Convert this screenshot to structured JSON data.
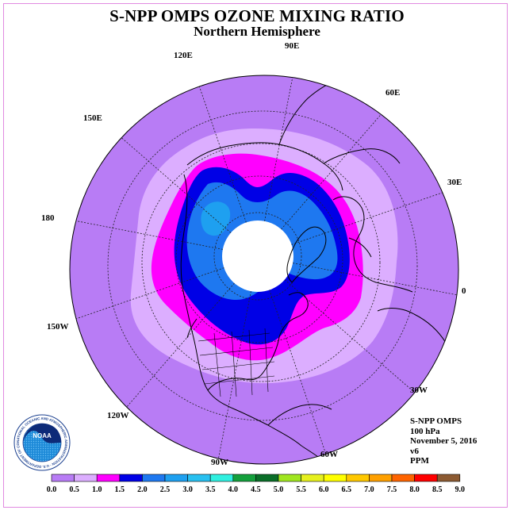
{
  "title": "S-NPP OMPS OZONE MIXING RATIO",
  "subtitle": "Northern Hemisphere",
  "longitude_labels": [
    "90E",
    "60E",
    "30E",
    "0",
    "30W",
    "60W",
    "90W",
    "120W",
    "150W",
    "180",
    "150E",
    "120E"
  ],
  "info": {
    "instrument": "S-NPP OMPS",
    "level": "100 hPa",
    "date": "November 5, 2016",
    "version": "v6",
    "units": "PPM"
  },
  "logo": {
    "center_text": "NOAA",
    "ring_text": "NATIONAL OCEANIC AND ATMOSPHERIC ADMINISTRATION · U.S. DEPARTMENT OF COMMERCE"
  },
  "colorbar": {
    "ticks": [
      "0.0",
      "0.5",
      "1.0",
      "1.5",
      "2.0",
      "2.5",
      "3.0",
      "3.5",
      "4.0",
      "4.5",
      "5.0",
      "5.5",
      "6.0",
      "6.5",
      "7.0",
      "7.5",
      "8.0",
      "8.5",
      "9.0"
    ],
    "colors": [
      "#b87cf5",
      "#dcaeff",
      "#ff00ff",
      "#0000e6",
      "#1e78f0",
      "#1ea0f0",
      "#28c0f0",
      "#30f0e0",
      "#14a03c",
      "#0a6e28",
      "#a0e620",
      "#e6f01e",
      "#ffff00",
      "#ffc800",
      "#ffa000",
      "#ff6400",
      "#ff0000",
      "#8c5a32"
    ]
  },
  "field_colors": {
    "level_0_0": "#b87cf5",
    "level_0_5": "#dcaeff",
    "level_1_0": "#ff00ff",
    "level_1_5": "#0000e6",
    "level_2_0": "#1e78f0",
    "level_2_5": "#1ea0f0",
    "missing": "#ffffff"
  }
}
